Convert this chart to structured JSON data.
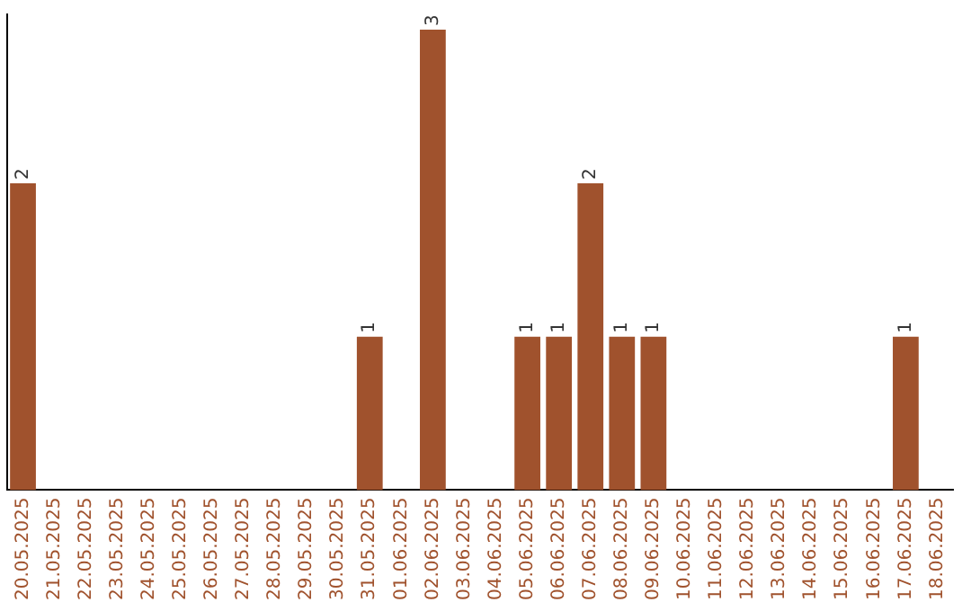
{
  "chart_data": {
    "type": "bar",
    "categories": [
      "20.05.2025",
      "21.05.2025",
      "22.05.2025",
      "23.05.2025",
      "24.05.2025",
      "25.05.2025",
      "26.05.2025",
      "27.05.2025",
      "28.05.2025",
      "29.05.2025",
      "30.05.2025",
      "31.05.2025",
      "01.06.2025",
      "02.06.2025",
      "03.06.2025",
      "04.06.2025",
      "05.06.2025",
      "06.06.2025",
      "07.06.2025",
      "08.06.2025",
      "09.06.2025",
      "10.06.2025",
      "11.06.2025",
      "12.06.2025",
      "13.06.2025",
      "14.06.2025",
      "15.06.2025",
      "16.06.2025",
      "17.06.2025",
      "18.06.2025"
    ],
    "values": [
      2,
      0,
      0,
      0,
      0,
      0,
      0,
      0,
      0,
      0,
      0,
      1,
      0,
      3,
      0,
      0,
      1,
      1,
      2,
      1,
      1,
      0,
      0,
      0,
      0,
      0,
      0,
      0,
      1,
      0
    ],
    "value_labels": [
      "2",
      null,
      null,
      null,
      null,
      null,
      null,
      null,
      null,
      null,
      null,
      "1",
      null,
      "3",
      null,
      null,
      "1",
      "1",
      "2",
      "1",
      "1",
      null,
      null,
      null,
      null,
      null,
      null,
      null,
      "1",
      null
    ],
    "color": "#a0522d",
    "ylim": [
      0,
      3.1
    ],
    "tick_labels": "x",
    "grid": false,
    "legend": false
  }
}
